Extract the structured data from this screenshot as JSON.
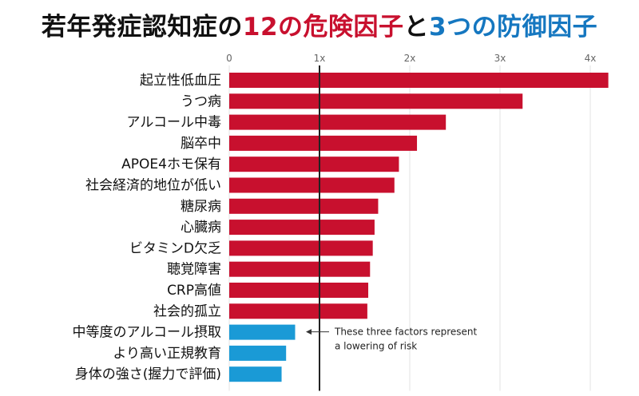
{
  "title": {
    "segments": [
      {
        "text": "若年発症認知症の",
        "color": "#111111"
      },
      {
        "text": "12の危険因子",
        "color": "#c8102e"
      },
      {
        "text": "と",
        "color": "#111111"
      },
      {
        "text": "3つの防御因子",
        "color": "#1577c0"
      }
    ]
  },
  "annotation": {
    "lines": [
      "These three factors represent",
      "a lowering of risk"
    ]
  },
  "chart_data": {
    "type": "bar",
    "orientation": "horizontal",
    "title": "若年発症認知症の12の危険因子と3つの防御因子",
    "xlim": [
      0,
      4.3
    ],
    "ticks": [
      0,
      1,
      2,
      3,
      4
    ],
    "tick_labels": [
      "0",
      "1x",
      "2x",
      "3x",
      "4x"
    ],
    "reference_line": 1,
    "grid": true,
    "categories": [
      "起立性低血圧",
      "うつ病",
      "アルコール中毒",
      "脳卒中",
      "APOE4ホモ保有",
      "社会経済的地位が低い",
      "糖尿病",
      "心臓病",
      "ビタミンD欠乏",
      "聴覚障害",
      "CRP高値",
      "社会的孤立",
      "中等度のアルコール摂取",
      "より高い正規教育",
      "身体の強さ(握力で評価)"
    ],
    "values": [
      4.2,
      3.25,
      2.4,
      2.08,
      1.88,
      1.83,
      1.65,
      1.61,
      1.59,
      1.56,
      1.54,
      1.53,
      0.73,
      0.63,
      0.58
    ],
    "groups": [
      "risk",
      "risk",
      "risk",
      "risk",
      "risk",
      "risk",
      "risk",
      "risk",
      "risk",
      "risk",
      "risk",
      "risk",
      "protective",
      "protective",
      "protective"
    ],
    "colors": {
      "risk": "#c8102e",
      "protective": "#1a9ad6"
    }
  }
}
